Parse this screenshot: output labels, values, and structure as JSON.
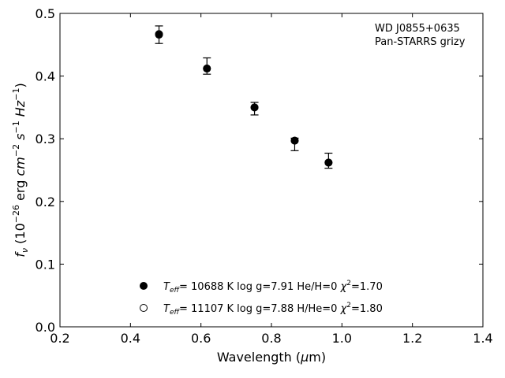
{
  "chart_data": {
    "type": "scatter",
    "annotation": [
      "WD J0855+0635",
      "Pan-STARRS grizy"
    ],
    "xlabel_parts": [
      "Wavelength (",
      "μ",
      "m)"
    ],
    "ylabel_parts": [
      "f",
      "ν",
      " (10",
      "−26",
      " erg ",
      "cm",
      "−2",
      " s",
      "−1",
      " Hz",
      "−1",
      ")"
    ],
    "xlim": [
      0.2,
      1.4
    ],
    "ylim": [
      0.0,
      0.5
    ],
    "x_ticks": [
      "0.2",
      "0.4",
      "0.6",
      "0.8",
      "1.0",
      "1.2",
      "1.4"
    ],
    "y_ticks": [
      "0.0",
      "0.1",
      "0.2",
      "0.3",
      "0.4",
      "0.5"
    ],
    "grid": false,
    "observed": {
      "x": [
        0.481,
        0.617,
        0.752,
        0.866,
        0.962
      ],
      "y": [
        0.466,
        0.416,
        0.348,
        0.291,
        0.265
      ],
      "err": [
        0.014,
        0.013,
        0.01,
        0.01,
        0.012
      ]
    },
    "series": [
      {
        "marker": "filled",
        "label": {
          "teff": "T",
          "teff_sub": "eff",
          "rest1": "= 10688 K  log g=7.91  He/H=0  ",
          "chi": "χ",
          "chi_sup": "2",
          "rest2": "=1.70"
        },
        "x": [
          0.481,
          0.617,
          0.752,
          0.866,
          0.962
        ],
        "y": [
          0.466,
          0.412,
          0.35,
          0.297,
          0.262
        ]
      },
      {
        "marker": "open",
        "label": {
          "teff": "T",
          "teff_sub": "eff",
          "rest1": "= 11107 K  log g=7.88  H/He=0  ",
          "chi": "χ",
          "chi_sup": "2",
          "rest2": "=1.80"
        },
        "x": [
          0.481,
          0.617,
          0.752,
          0.866,
          0.962
        ],
        "y": [
          0.467,
          0.412,
          0.35,
          0.297,
          0.262
        ]
      }
    ],
    "legend_position": "bottom-center"
  }
}
